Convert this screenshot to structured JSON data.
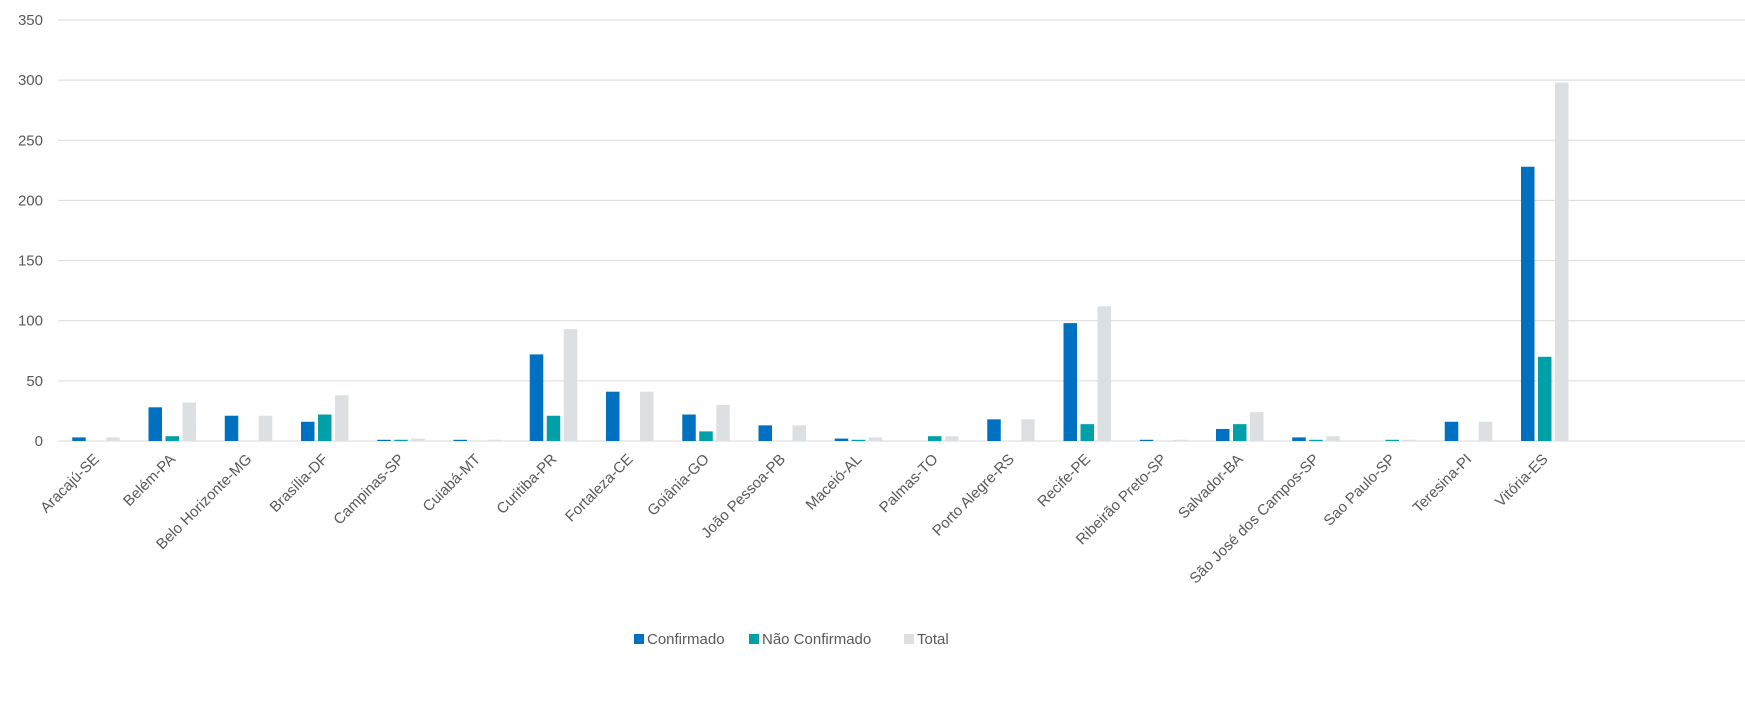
{
  "chart_data": {
    "type": "bar",
    "categories": [
      "Aracajú-SE",
      "Belém-PA",
      "Belo Horizonte-MG",
      "Brasília-DF",
      "Campinas-SP",
      "Cuiabá-MT",
      "Curitiba-PR",
      "Fortaleza-CE",
      "Goiânia-GO",
      "João Pessoa-PB",
      "Maceió-AL",
      "Palmas-TO",
      "Porto Alegre-RS",
      "Recife-PE",
      "Ribeirão Preto-SP",
      "Salvador-BA",
      "São José dos Campos-SP",
      "Sao Paulo-SP",
      "Teresina-PI",
      "Vitória-ES"
    ],
    "series": [
      {
        "name": "Confirmado",
        "color": "#0070C0",
        "values": [
          3,
          28,
          21,
          16,
          1,
          1,
          72,
          41,
          22,
          13,
          2,
          0,
          18,
          98,
          1,
          10,
          3,
          0,
          16,
          228
        ]
      },
      {
        "name": "Não Confirmado",
        "color": "#00A0A8",
        "values": [
          0,
          4,
          0,
          22,
          1,
          0,
          21,
          0,
          8,
          0,
          1,
          4,
          0,
          14,
          0,
          14,
          1,
          1,
          0,
          70
        ]
      },
      {
        "name": "Total",
        "color": "#DDE0E2",
        "values": [
          3,
          32,
          21,
          38,
          2,
          1,
          93,
          41,
          30,
          13,
          3,
          4,
          18,
          112,
          1,
          24,
          4,
          1,
          16,
          298
        ]
      }
    ],
    "yticks": [
      "0",
      "50",
      "100",
      "150",
      "200",
      "250",
      "300",
      "350"
    ],
    "ylim": [
      0,
      350
    ],
    "grid": true,
    "legend_position": "bottom"
  }
}
